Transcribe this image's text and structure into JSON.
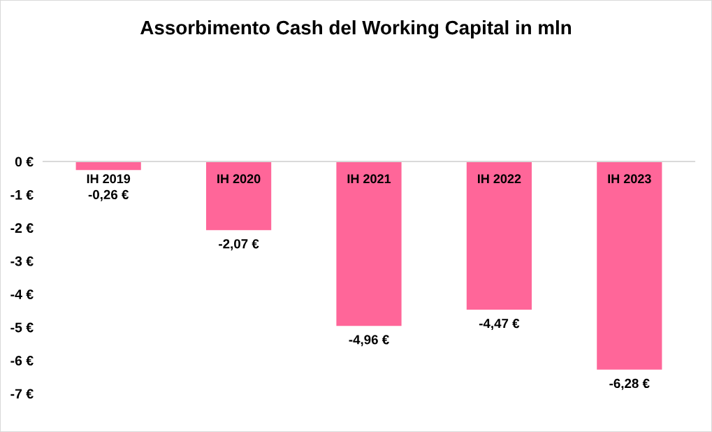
{
  "chart_data": {
    "type": "bar",
    "title": "Assorbimento Cash del Working Capital in mln",
    "categories": [
      "IH 2019",
      "IH 2020",
      "IH 2021",
      "IH 2022",
      "IH 2023"
    ],
    "values": [
      -0.26,
      -2.07,
      -4.96,
      -4.47,
      -6.28
    ],
    "color": "#ff6699",
    "value_labels": [
      "-0,26 €",
      "-2,07 €",
      "-4,96 €",
      "-4,47 €",
      "-6,28 €"
    ],
    "ylim": [
      -7,
      0
    ],
    "yticks": [
      {
        "value": 0,
        "label": "0 €"
      },
      {
        "value": -1,
        "label": "-1 €"
      },
      {
        "value": -2,
        "label": "-2 €"
      },
      {
        "value": -3,
        "label": "-3 €"
      },
      {
        "value": -4,
        "label": "-4 €"
      },
      {
        "value": -5,
        "label": "-5 €"
      },
      {
        "value": -6,
        "label": "-6 €"
      },
      {
        "value": -7,
        "label": "-7 €"
      }
    ]
  }
}
